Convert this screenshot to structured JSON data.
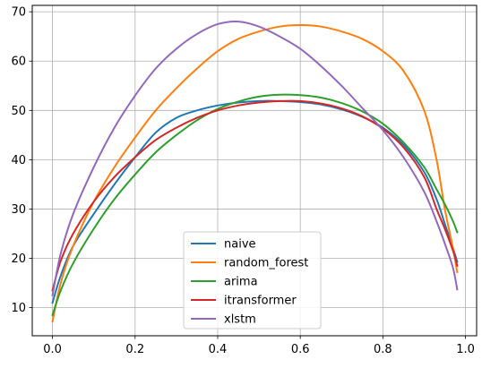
{
  "chart_data": {
    "type": "line",
    "title": "",
    "xlabel": "",
    "ylabel": "",
    "xlim": [
      -0.049,
      1.027
    ],
    "ylim": [
      4.3,
      71.3
    ],
    "x_ticks": [
      0.0,
      0.2,
      0.4,
      0.6,
      0.8,
      1.0
    ],
    "x_tick_labels": [
      "0.0",
      "0.2",
      "0.4",
      "0.6",
      "0.8",
      "1.0"
    ],
    "y_ticks": [
      10,
      20,
      30,
      40,
      50,
      60,
      70
    ],
    "y_tick_labels": [
      "10",
      "20",
      "30",
      "40",
      "50",
      "60",
      "70"
    ],
    "grid": true,
    "legend_position": "lower-center",
    "x": [
      0.0,
      0.02,
      0.05,
      0.1,
      0.15,
      0.2,
      0.25,
      0.3,
      0.35,
      0.4,
      0.45,
      0.5,
      0.55,
      0.6,
      0.65,
      0.7,
      0.75,
      0.8,
      0.85,
      0.9,
      0.93,
      0.95,
      0.97,
      0.98
    ],
    "series": [
      {
        "name": "naive",
        "color": "#1f77b4",
        "values": [
          11.0,
          16.5,
          22.5,
          29.0,
          35.0,
          40.5,
          45.5,
          48.5,
          50.0,
          51.0,
          51.6,
          51.9,
          51.9,
          51.7,
          51.2,
          50.2,
          48.7,
          46.5,
          43.0,
          37.5,
          32.0,
          27.0,
          22.0,
          19.3
        ]
      },
      {
        "name": "random_forest",
        "color": "#ff7f0e",
        "values": [
          7.2,
          15.0,
          22.5,
          31.5,
          38.5,
          44.5,
          50.0,
          54.5,
          58.5,
          62.0,
          64.5,
          66.0,
          67.0,
          67.3,
          67.0,
          66.0,
          64.5,
          62.0,
          58.0,
          50.0,
          40.0,
          30.0,
          22.0,
          17.2
        ]
      },
      {
        "name": "arima",
        "color": "#2ca02c",
        "values": [
          8.5,
          13.5,
          19.0,
          26.0,
          32.0,
          37.0,
          41.5,
          45.0,
          48.0,
          50.3,
          51.8,
          52.8,
          53.2,
          53.1,
          52.6,
          51.5,
          49.8,
          47.3,
          43.5,
          38.5,
          34.0,
          31.0,
          27.5,
          25.3
        ]
      },
      {
        "name": "itransformer",
        "color": "#d62728",
        "values": [
          13.5,
          19.5,
          25.0,
          31.5,
          36.5,
          40.5,
          44.0,
          46.5,
          48.5,
          50.0,
          51.0,
          51.6,
          51.9,
          51.9,
          51.4,
          50.4,
          48.8,
          46.3,
          42.5,
          36.5,
          30.0,
          26.0,
          21.5,
          18.5
        ]
      },
      {
        "name": "xlstm",
        "color": "#9467bd",
        "values": [
          12.5,
          21.0,
          29.0,
          38.5,
          46.5,
          53.0,
          58.5,
          62.5,
          65.5,
          67.5,
          68.0,
          67.0,
          65.0,
          62.5,
          59.0,
          55.0,
          50.5,
          46.0,
          40.5,
          33.5,
          27.5,
          23.0,
          18.0,
          13.7
        ]
      }
    ]
  }
}
